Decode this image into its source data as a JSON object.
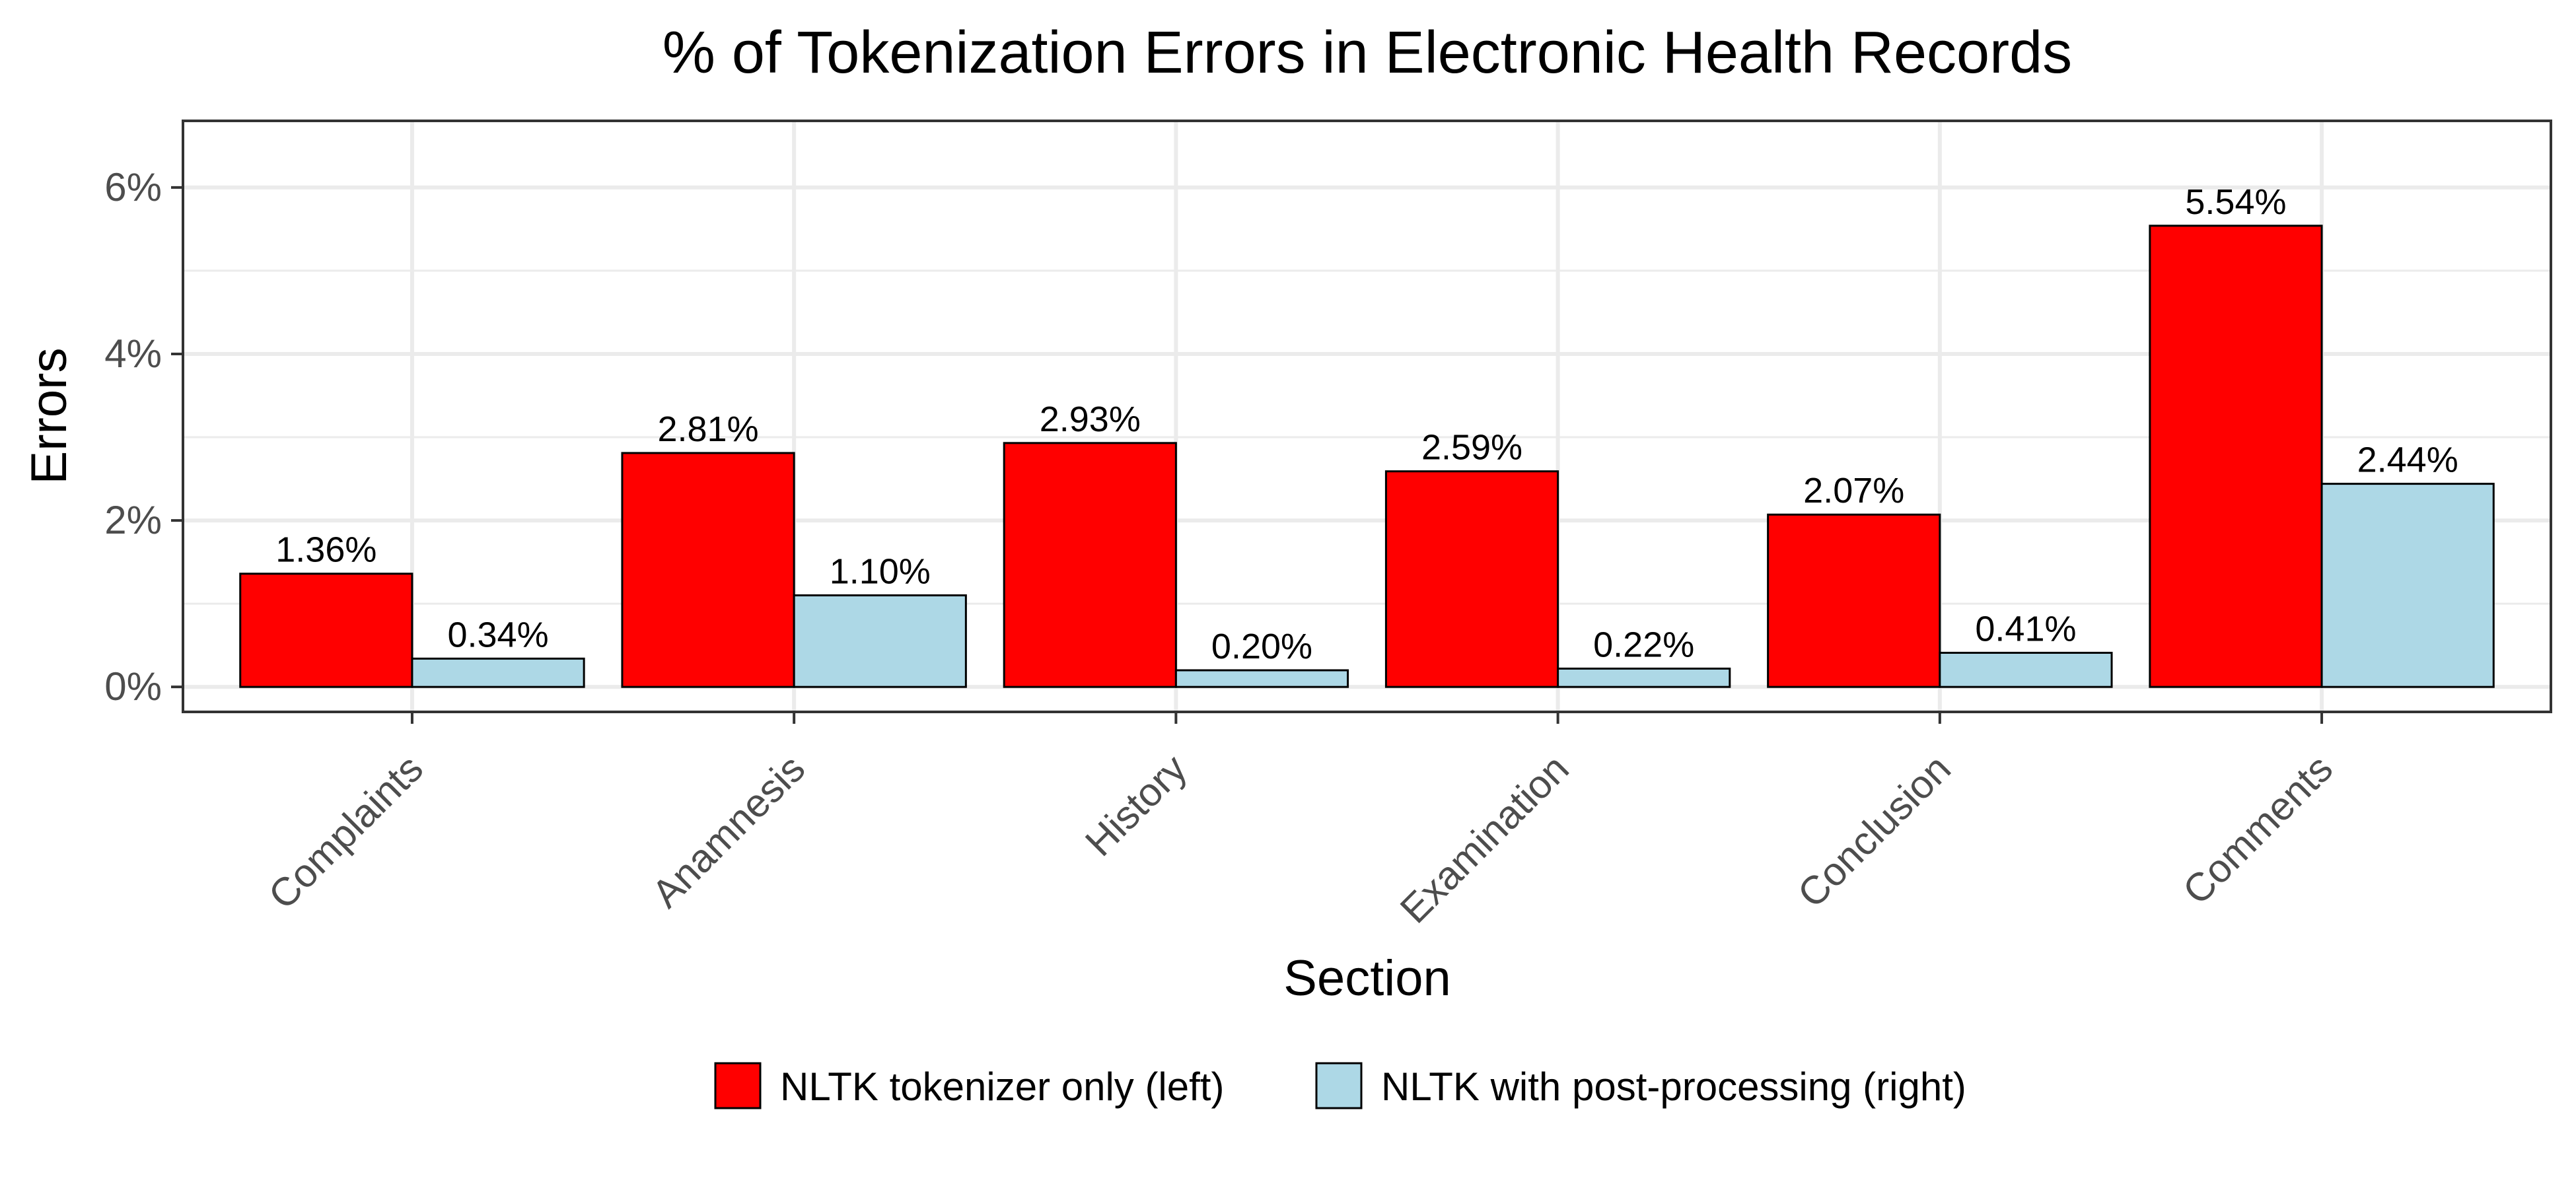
{
  "chart_data": {
    "type": "bar",
    "title": "% of Tokenization Errors in Electronic Health Records",
    "xlabel": "Section",
    "ylabel": "Errors",
    "categories": [
      "Complaints",
      "Anamnesis",
      "History",
      "Examination",
      "Conclusion",
      "Comments"
    ],
    "series": [
      {
        "name": "NLTK tokenizer only (left)",
        "color": "#ff0000",
        "values": [
          1.36,
          2.81,
          2.93,
          2.59,
          2.07,
          5.54
        ],
        "labels": [
          "1.36%",
          "2.81%",
          "2.93%",
          "2.59%",
          "2.07%",
          "5.54%"
        ]
      },
      {
        "name": "NLTK with post-processing (right)",
        "color": "#add8e6",
        "values": [
          0.34,
          1.1,
          0.2,
          0.22,
          0.41,
          2.44
        ],
        "labels": [
          "0.34%",
          "1.10%",
          "0.20%",
          "0.22%",
          "0.41%",
          "2.44%"
        ]
      }
    ],
    "ylim": [
      -0.3,
      6.8
    ],
    "yticks": [
      0,
      2,
      4,
      6
    ],
    "ytick_labels": [
      "0%",
      "2%",
      "4%",
      "6%"
    ],
    "grid": true,
    "legend_position": "bottom"
  }
}
